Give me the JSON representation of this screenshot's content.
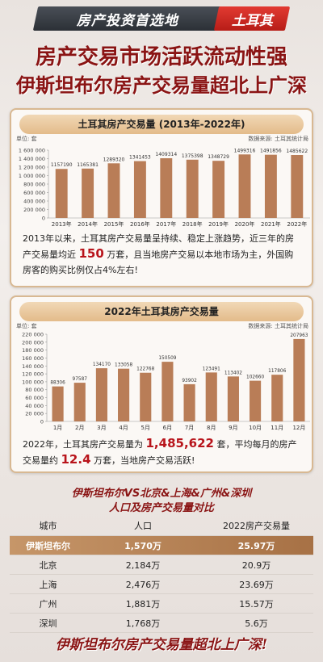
{
  "banner": {
    "left_text": "房产投资首选地",
    "right_text": "土耳其"
  },
  "headline": {
    "line1": "房产交易市场活跃流动性强",
    "line2": "伊斯坦布尔房产交易量超北上广深"
  },
  "colors": {
    "bar": "#b97d57",
    "accent": "#b8141b",
    "title_red": "#8a1414"
  },
  "section1": {
    "title": "土耳其房产交易量 (2013年-2022年)",
    "unit": "单位: 套",
    "source": "数据来源: 土耳其统计局",
    "desc_before": "2013年以来，土耳其房产交易量呈持续、稳定上涨趋势，近三年的房产交易量均近 ",
    "desc_highlight": "150",
    "desc_after": " 万套，且当地房产交易以本地市场为主，外国购房客的购买比例仅占4%左右!"
  },
  "section2": {
    "title": "2022年土耳其房产交易量",
    "unit": "单位: 套",
    "source": "数据来源: 土耳其统计局",
    "desc_p1": "2022年，土耳其房产交易量为 ",
    "desc_h1": "1,485,622",
    "desc_p2": " 套，平均每月的房产交易量约 ",
    "desc_h2": "12.4",
    "desc_p3": " 万套，当地房产交易活跃!"
  },
  "chart_data": [
    {
      "type": "bar",
      "title": "土耳其房产交易量 (2013年-2022年)",
      "categories": [
        "2013年",
        "2014年",
        "2015年",
        "2016年",
        "2017年",
        "2018年",
        "2019年",
        "2020年",
        "2021年",
        "2022年"
      ],
      "values": [
        1157190,
        1165381,
        1289320,
        1341453,
        1409314,
        1375398,
        1348729,
        1499316,
        1491856,
        1485622
      ],
      "value_labels": [
        "1157190",
        "1165381",
        "1289320",
        "1341453",
        "1409314",
        "1375398",
        "1348729",
        "1499316",
        "1491856",
        "1485622"
      ],
      "yticks": [
        "0",
        "200 000",
        "400 000",
        "600 000",
        "800 000",
        "1 000 000",
        "1 200 000",
        "1 400 000",
        "1 600 000"
      ],
      "ylim": [
        0,
        1600000
      ],
      "grid": false
    },
    {
      "type": "bar",
      "title": "2022年土耳其房产交易量",
      "categories": [
        "1月",
        "2月",
        "3月",
        "4月",
        "5月",
        "6月",
        "7月",
        "8月",
        "9月",
        "10月",
        "11月",
        "12月"
      ],
      "values": [
        88306,
        97587,
        134170,
        133058,
        122768,
        150509,
        93902,
        123491,
        113402,
        102660,
        117806,
        207963
      ],
      "value_labels": [
        "88306",
        "97587",
        "134170",
        "133058",
        "122768",
        "150509",
        "93902",
        "123491",
        "113402",
        "102660",
        "117806",
        "207963"
      ],
      "yticks": [
        "0",
        "20 000",
        "40 000",
        "60 000",
        "80 000",
        "100 000",
        "120 000",
        "140 000",
        "160 000",
        "180 000",
        "200 000",
        "220 000"
      ],
      "ylim": [
        0,
        220000
      ],
      "grid": false
    }
  ],
  "comparison": {
    "title1": "伊斯坦布尔VS北京&上海&广州&深圳",
    "title2": "人口及房产交易量对比",
    "headers": [
      "城市",
      "人口",
      "2022房产交易量"
    ],
    "rows": [
      [
        "伊斯坦布尔",
        "1,570万",
        "25.97万"
      ],
      [
        "北京",
        "2,184万",
        "20.9万"
      ],
      [
        "上海",
        "2,476万",
        "23.69万"
      ],
      [
        "广州",
        "1,881万",
        "15.57万"
      ],
      [
        "深圳",
        "1,768万",
        "5.6万"
      ]
    ]
  },
  "footer": "伊斯坦布尔房产交易量超北上广深!"
}
